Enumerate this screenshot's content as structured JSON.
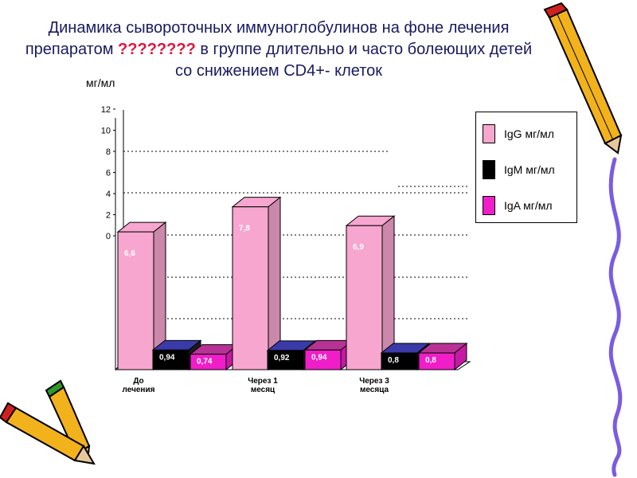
{
  "title": {
    "before": "Динамика сывороточных иммуноглобулинов на фоне лечения препаратом ",
    "highlight": "????????",
    "after": " в группе длительно и часто болеющих детей со снижением CD4+- клеток"
  },
  "chart_data": {
    "type": "bar",
    "ylabel": "мг/мл",
    "yticks": [
      "12",
      "10",
      "8",
      "6",
      "4",
      "2",
      "0"
    ],
    "categories": [
      "До лечения",
      "Через 1 месяц",
      "Через 3 месяца"
    ],
    "series": [
      {
        "name": "IgG мг/мл",
        "values": [
          6.6,
          7.8,
          6.9
        ],
        "labels": [
          "6,6",
          "7,8",
          "6,9"
        ],
        "color": "#f7a6cf"
      },
      {
        "name": "IgM мг/мл",
        "values": [
          0.94,
          0.92,
          0.8
        ],
        "labels": [
          "0,94",
          "0,92",
          "0,8"
        ],
        "color": "#000000"
      },
      {
        "name": "IgA мг/мл",
        "values": [
          0.74,
          0.94,
          0.8
        ],
        "labels": [
          "0,74",
          "0,94",
          "0,8"
        ],
        "color": "#f01ec8"
      }
    ],
    "legend_position": "right"
  },
  "colors": {
    "title": "#1a1a60",
    "title_highlight": "#e0143c",
    "igm_top": "#3a3aa8",
    "iga_top": "#b83296"
  },
  "decorations": [
    "pencil-top-right",
    "pencils-bottom-left",
    "squiggle-right"
  ]
}
